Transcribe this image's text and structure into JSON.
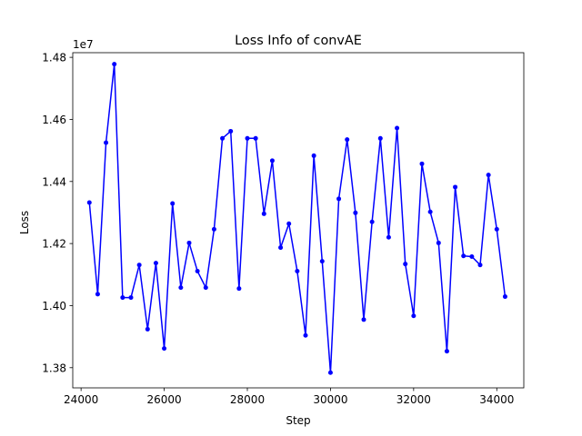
{
  "chart_data": {
    "type": "line",
    "title": "Loss Info of convAE",
    "xlabel": "Step",
    "ylabel": "Loss",
    "y_offset_label": "1e7",
    "xlim": [
      23800,
      34650
    ],
    "ylim": [
      1.3735,
      1.4815
    ],
    "x_ticks": [
      24000,
      26000,
      28000,
      30000,
      32000,
      34000
    ],
    "x_tick_labels": [
      "24000",
      "26000",
      "28000",
      "30000",
      "32000",
      "34000"
    ],
    "y_ticks": [
      1.38,
      1.4,
      1.42,
      1.44,
      1.46,
      1.48
    ],
    "y_tick_labels": [
      "1.38",
      "1.40",
      "1.42",
      "1.44",
      "1.46",
      "1.48"
    ],
    "grid": false,
    "series": [
      {
        "color": "#0000ff",
        "marker": "circle",
        "x": [
          24200,
          24400,
          24600,
          24800,
          25000,
          25200,
          25400,
          25600,
          25800,
          26000,
          26200,
          26400,
          26600,
          26800,
          27000,
          27200,
          27400,
          27600,
          27800,
          28000,
          28200,
          28400,
          28600,
          28800,
          29000,
          29200,
          29400,
          29600,
          29800,
          30000,
          30200,
          30400,
          30600,
          30800,
          31000,
          31200,
          31400,
          31600,
          31800,
          32000,
          32200,
          32400,
          32600,
          32800,
          33000,
          33200,
          33400,
          33600,
          33800,
          34000,
          34200
        ],
        "y": [
          1.4332,
          1.4037,
          1.4525,
          1.4778,
          1.4026,
          1.4026,
          1.4131,
          1.3924,
          1.4137,
          1.3862,
          1.4329,
          1.4058,
          1.4202,
          1.4111,
          1.4058,
          1.4246,
          1.4539,
          1.4562,
          1.4055,
          1.4539,
          1.4539,
          1.4296,
          1.4467,
          1.4187,
          1.4264,
          1.4111,
          1.3904,
          1.4483,
          1.4143,
          1.3784,
          1.4344,
          1.4535,
          1.4299,
          1.3955,
          1.427,
          1.4539,
          1.422,
          1.4572,
          1.4134,
          1.3967,
          1.4457,
          1.4302,
          1.4202,
          1.3853,
          1.4382,
          1.416,
          1.4158,
          1.4131,
          1.4421,
          1.4246,
          1.4029
        ]
      }
    ]
  }
}
